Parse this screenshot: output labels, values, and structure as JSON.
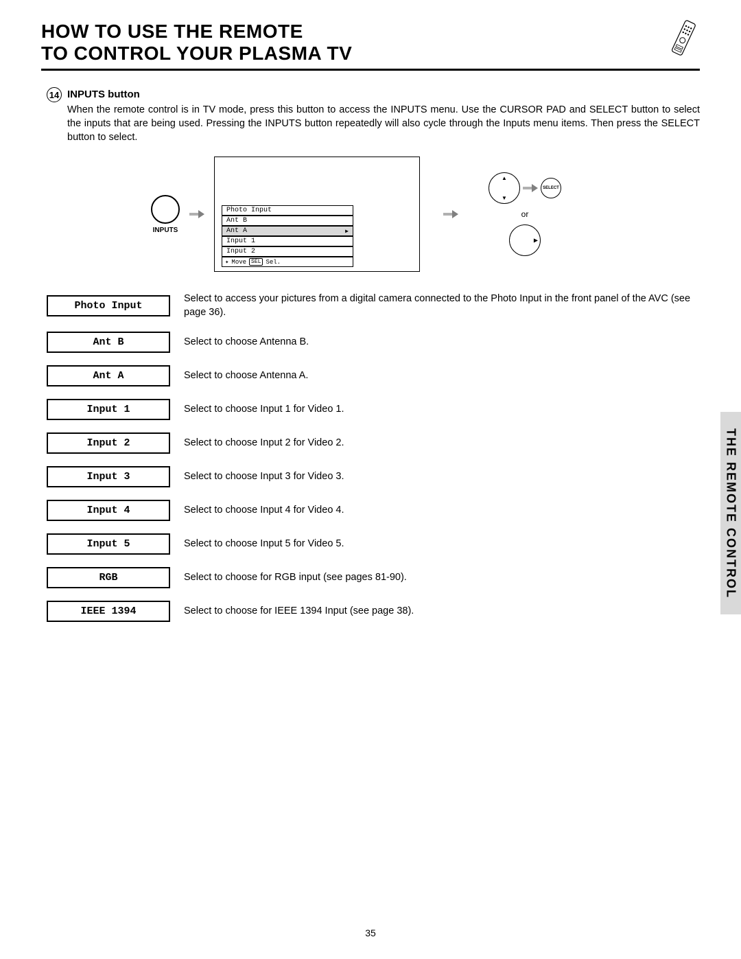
{
  "header": {
    "title_line1": "HOW TO USE THE REMOTE",
    "title_line2": "TO CONTROL YOUR PLASMA TV"
  },
  "section": {
    "number": "14",
    "title": "INPUTS button",
    "description": "When the remote control is in TV mode, press this button to access the INPUTS menu.  Use the CURSOR PAD and SELECT button to select the inputs that are being used.  Pressing the INPUTS button repeatedly will also cycle through the Inputs menu items.  Then press the SELECT button to select."
  },
  "figure": {
    "button_label": "INPUTS",
    "osd": {
      "items": [
        "Photo Input",
        "Ant B",
        "Ant A",
        "Input 1",
        "Input 2"
      ],
      "selected_index": 2,
      "footer_move": "Move",
      "footer_sel": "Sel.",
      "footer_key": "SEL"
    },
    "select_label": "SELECT",
    "or_label": "or"
  },
  "definitions": [
    {
      "label": "Photo Input",
      "desc": "Select to access your pictures from a digital camera connected to the Photo Input in the front panel of the AVC (see page 36)."
    },
    {
      "label": "Ant B",
      "desc": "Select to choose Antenna B."
    },
    {
      "label": "Ant A",
      "desc": "Select to choose Antenna A."
    },
    {
      "label": "Input 1",
      "desc": "Select to choose Input 1 for Video 1."
    },
    {
      "label": "Input 2",
      "desc": "Select to choose Input 2 for Video 2."
    },
    {
      "label": "Input 3",
      "desc": "Select to choose Input 3 for Video 3."
    },
    {
      "label": "Input 4",
      "desc": "Select to choose Input 4 for Video 4."
    },
    {
      "label": "Input 5",
      "desc": "Select to choose Input 5 for Video 5."
    },
    {
      "label": "RGB",
      "desc": "Select to choose for RGB input (see pages 81-90)."
    },
    {
      "label": "IEEE 1394",
      "desc": "Select to choose for IEEE 1394 Input (see page 38)."
    }
  ],
  "side_tab": "THE REMOTE CONTROL",
  "page_number": "35",
  "colors": {
    "background": "#ffffff",
    "text": "#000000",
    "tab_bg": "#d9d9d9",
    "osd_selected_bg": "#d9d9d9",
    "arrow_gray": "#808080"
  }
}
